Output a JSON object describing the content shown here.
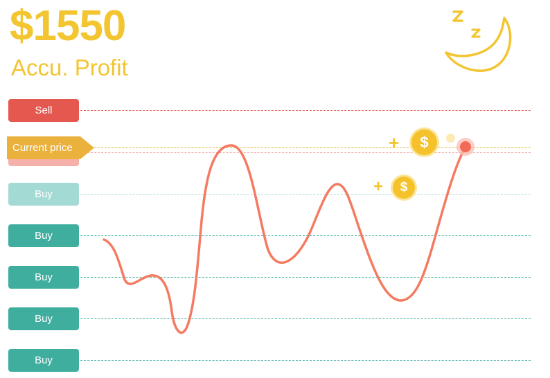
{
  "header": {
    "profit_amount": "$1550",
    "profit_label": "Accu. Profit"
  },
  "levels": {
    "sell_label": "Sell",
    "current_price_label": "Current price",
    "buy_labels": [
      "Buy",
      "Buy",
      "Buy",
      "Buy",
      "Buy"
    ]
  },
  "gains": {
    "plus_sign": "+",
    "coin_symbol": "$"
  },
  "icons": {
    "moon": "sleeping-moon-icon",
    "coin": "dollar-coin-icon"
  },
  "colors": {
    "accent_yellow": "#f2c531",
    "sell_red": "#e55850",
    "buy_teal": "#3fae9f",
    "current_orange": "#ebb13d",
    "curve": "#f47b62"
  }
}
